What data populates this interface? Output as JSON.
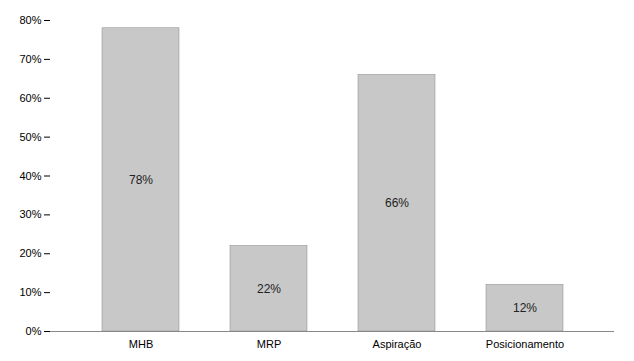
{
  "chart_data": {
    "type": "bar",
    "categories": [
      "MHB",
      "MRP",
      "Aspiração",
      "Posicionamento"
    ],
    "values": [
      78,
      22,
      66,
      12
    ],
    "value_labels": [
      "78%",
      "22%",
      "66%",
      "12%"
    ],
    "data_labels": true,
    "color": "#c8c8c8",
    "ylim": [
      0,
      80
    ],
    "yticks": [
      {
        "value": 0,
        "label": "0%"
      },
      {
        "value": 10,
        "label": "10%"
      },
      {
        "value": 20,
        "label": "20%"
      },
      {
        "value": 30,
        "label": "30%"
      },
      {
        "value": 40,
        "label": "40%"
      },
      {
        "value": 50,
        "label": "50%"
      },
      {
        "value": 60,
        "label": "60%"
      },
      {
        "value": 70,
        "label": "70%"
      },
      {
        "value": 80,
        "label": "80%"
      }
    ],
    "grid": false
  }
}
